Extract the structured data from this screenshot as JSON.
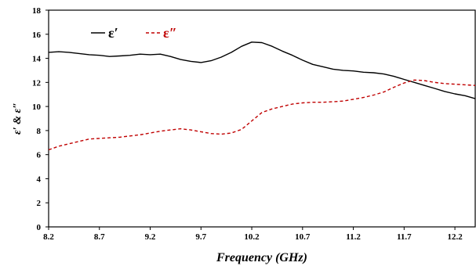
{
  "chart_data": {
    "type": "line",
    "xlabel": "Frequency (GHz)",
    "ylabel": "ε′ & ε″",
    "xlim": [
      8.2,
      12.4
    ],
    "ylim": [
      0,
      18
    ],
    "xticks": [
      8.2,
      8.7,
      9.2,
      9.7,
      10.2,
      10.7,
      11.2,
      11.7,
      12.2
    ],
    "xtick_labels": [
      "8.2",
      "8.7",
      "9.2",
      "9.7",
      "10.2",
      "10.7",
      "11.2",
      "11.7",
      "12.2"
    ],
    "yticks": [
      0,
      2,
      4,
      6,
      8,
      10,
      12,
      14,
      16,
      18
    ],
    "ytick_labels": [
      "0",
      "2",
      "4",
      "6",
      "8",
      "10",
      "12",
      "14",
      "16",
      "18"
    ],
    "grid": false,
    "legend_position": "top-left",
    "series": [
      {
        "name": "ε′",
        "color": "#000000",
        "style": "solid",
        "x": [
          8.2,
          8.3,
          8.4,
          8.5,
          8.6,
          8.7,
          8.8,
          8.9,
          9.0,
          9.1,
          9.2,
          9.3,
          9.4,
          9.5,
          9.6,
          9.7,
          9.8,
          9.9,
          10.0,
          10.1,
          10.2,
          10.3,
          10.4,
          10.5,
          10.6,
          10.7,
          10.8,
          10.9,
          11.0,
          11.1,
          11.2,
          11.3,
          11.4,
          11.5,
          11.6,
          11.7,
          11.8,
          11.9,
          12.0,
          12.1,
          12.2,
          12.3,
          12.4
        ],
        "values": [
          14.5,
          14.55,
          14.5,
          14.4,
          14.3,
          14.25,
          14.15,
          14.2,
          14.25,
          14.35,
          14.3,
          14.35,
          14.15,
          13.9,
          13.75,
          13.65,
          13.8,
          14.1,
          14.5,
          15.0,
          15.35,
          15.3,
          15.0,
          14.6,
          14.25,
          13.85,
          13.5,
          13.3,
          13.1,
          13.0,
          12.95,
          12.85,
          12.8,
          12.7,
          12.5,
          12.25,
          12.0,
          11.75,
          11.5,
          11.25,
          11.05,
          10.9,
          10.65
        ]
      },
      {
        "name": "ε″",
        "color": "#c00000",
        "style": "dashed",
        "x": [
          8.2,
          8.3,
          8.4,
          8.5,
          8.6,
          8.7,
          8.8,
          8.9,
          9.0,
          9.1,
          9.2,
          9.3,
          9.4,
          9.5,
          9.6,
          9.7,
          9.8,
          9.9,
          10.0,
          10.1,
          10.2,
          10.3,
          10.4,
          10.5,
          10.6,
          10.7,
          10.8,
          10.9,
          11.0,
          11.1,
          11.2,
          11.3,
          11.4,
          11.5,
          11.6,
          11.7,
          11.8,
          11.9,
          12.0,
          12.1,
          12.2,
          12.3,
          12.4
        ],
        "values": [
          6.4,
          6.7,
          6.9,
          7.1,
          7.3,
          7.35,
          7.4,
          7.45,
          7.55,
          7.65,
          7.8,
          7.95,
          8.05,
          8.15,
          8.05,
          7.9,
          7.75,
          7.7,
          7.8,
          8.1,
          8.8,
          9.5,
          9.8,
          10.0,
          10.2,
          10.3,
          10.35,
          10.35,
          10.4,
          10.45,
          10.6,
          10.75,
          10.95,
          11.2,
          11.6,
          11.95,
          12.2,
          12.15,
          12.0,
          11.9,
          11.85,
          11.8,
          11.75
        ]
      }
    ]
  }
}
